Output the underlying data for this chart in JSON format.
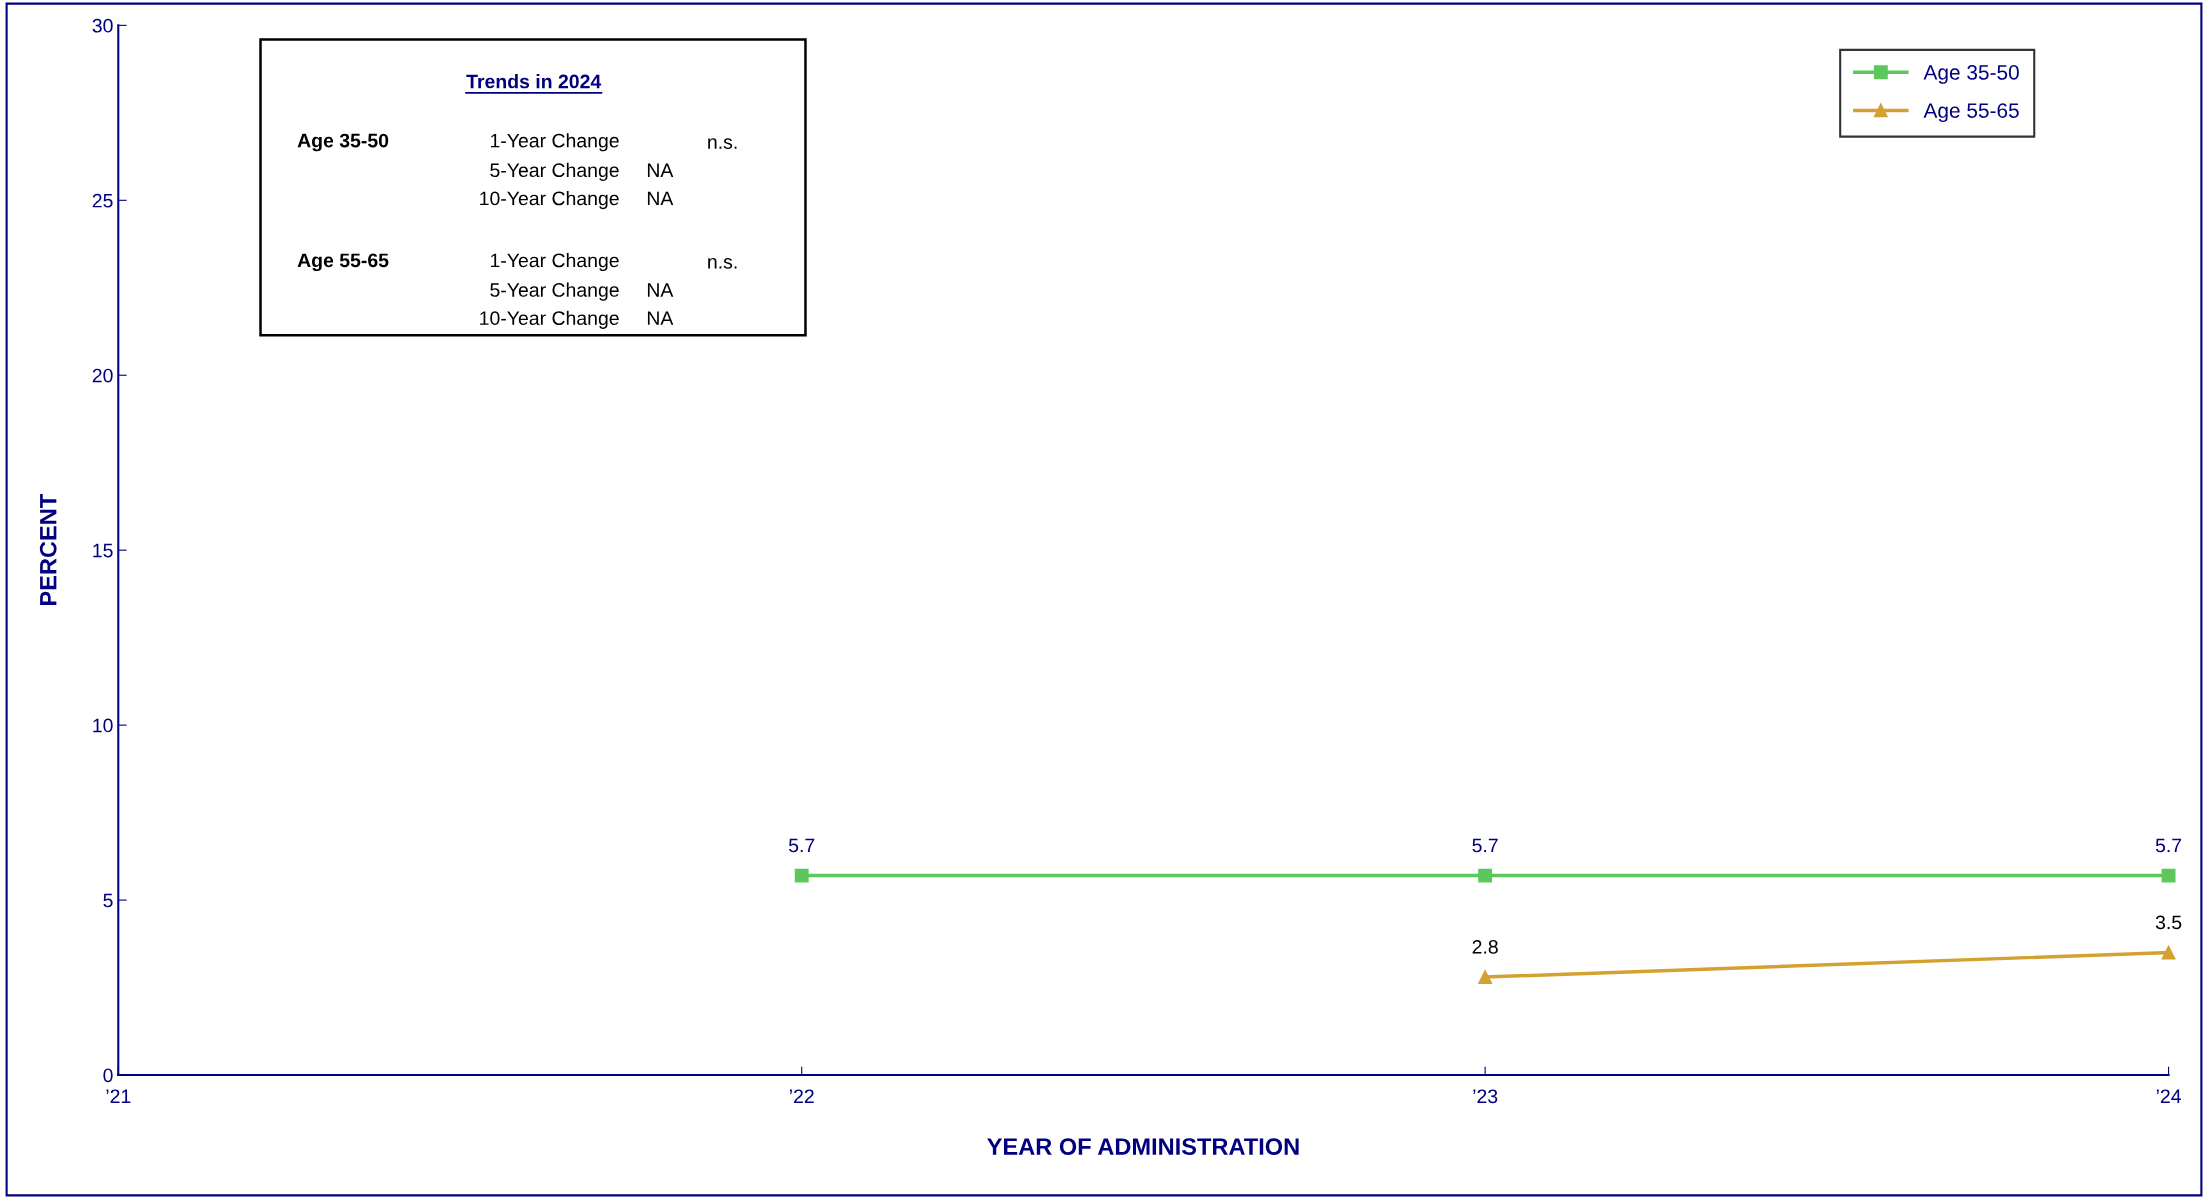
{
  "chart_data": {
    "type": "line",
    "xlabel": "YEAR OF ADMINISTRATION",
    "ylabel": "PERCENT",
    "xlim": [
      2021,
      2024
    ],
    "xticks": [
      {
        "value": 2021,
        "label": "’21"
      },
      {
        "value": 2022,
        "label": "’22"
      },
      {
        "value": 2023,
        "label": "’23"
      },
      {
        "value": 2024,
        "label": "’24"
      }
    ],
    "ylim": [
      0,
      30
    ],
    "yticks": [
      0,
      5,
      10,
      15,
      20,
      25,
      30
    ],
    "grid": false,
    "legend": "top right",
    "data_labels": true,
    "line_style": "solid",
    "series": [
      {
        "name": "Age 35-50",
        "color": "#5cc85c",
        "marker": "square",
        "x": [
          2022,
          2023,
          2024
        ],
        "values": [
          5.7,
          5.7,
          5.7
        ]
      },
      {
        "name": "Age 55-65",
        "color": "#d4a030",
        "marker": "triangle",
        "x": [
          2023,
          2024
        ],
        "values": [
          2.8,
          3.5
        ]
      }
    ],
    "annotations": [
      "Trends in 2024",
      "Age 35-50",
      "1-Year Change",
      "n.s.",
      "5-Year Change",
      "NA",
      "10-Year Change",
      "NA",
      "Age 55-65",
      "1-Year Change",
      "n.s.",
      "5-Year Change",
      "NA",
      "10-Year Change",
      "NA"
    ]
  }
}
